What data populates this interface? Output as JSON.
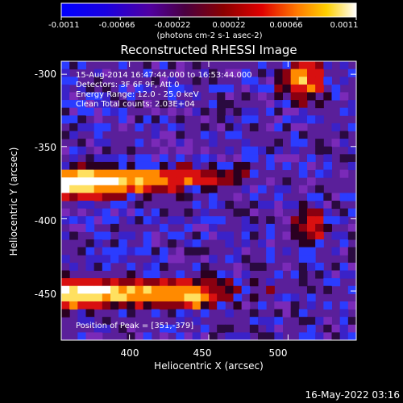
{
  "chart_data": {
    "type": "heatmap",
    "title": "Reconstructed RHESSI Image",
    "xlabel": "Heliocentric X (arcsec)",
    "ylabel": "Heliocentric Y (arcsec)",
    "xlim": [
      357,
      543
    ],
    "ylim": [
      -484,
      -291
    ],
    "x_ticks": [
      400,
      450,
      500
    ],
    "y_ticks": [
      -300,
      -350,
      -400,
      -450
    ],
    "colorbar": {
      "label": "(photons cm-2 s-1 asec-2)",
      "range": [
        -0.0011,
        0.0011
      ],
      "ticks": [
        "-0.0011",
        "-0.00066",
        "-0.00022",
        "0.00022",
        "0.00066",
        "0.0011"
      ],
      "colormap": [
        "#0000ff",
        "#3000a0",
        "#5a0a80",
        "#8e0000",
        "#e00000",
        "#ff8000",
        "#ffd000",
        "#ffffff"
      ]
    },
    "colors": {
      "blue": "#2b3cff",
      "purple": "#6a1fa6",
      "dark": "#2a0020",
      "red": "#d81010",
      "orange": "#ff8a00",
      "yellow": "#ffe060",
      "white": "#ffffff"
    },
    "sources": [
      {
        "name": "",
        "x": 365,
        "y": -375,
        "peak": 1.0
      },
      {
        "name": "",
        "x": 365,
        "y": -452,
        "peak": 0.95
      },
      {
        "name": "",
        "x": 505,
        "y": -301,
        "peak": 0.55
      }
    ],
    "peak_position": [
      351,
      -379
    ]
  },
  "annotations": {
    "line1": "15-Aug-2014 16:47:44.000 to 16:53:44.000",
    "line2": "Detectors: 3F 6F 9F, Att 0",
    "line3": "Energy Range: 12.0 - 25.0 keV",
    "line4": "Clean     Total counts: 2.03E+04",
    "peak_text": "Position of Peak = [351,-379]"
  },
  "footer": {
    "timestamp": "16-May-2022 03:16"
  }
}
